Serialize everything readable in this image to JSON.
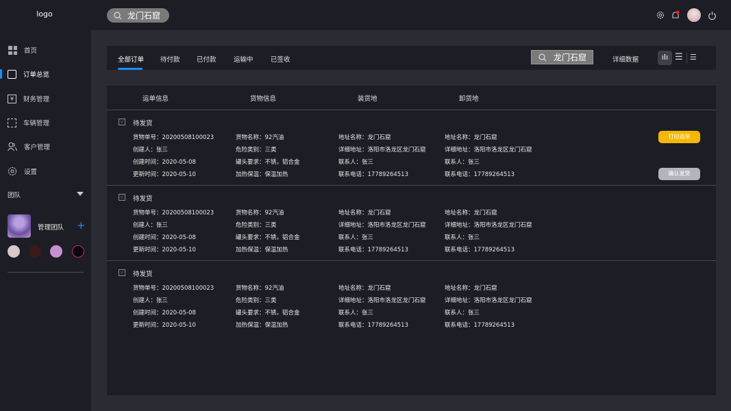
{
  "topbar": {
    "logo": "logo",
    "search_value": "龙门石窟",
    "icons": [
      "gear-icon",
      "bell-icon",
      "avatar",
      "power-icon"
    ],
    "notification_color": "#ff0000"
  },
  "sidebar": {
    "items": [
      {
        "label": "首页",
        "icon": "grid-icon"
      },
      {
        "label": "订单总览",
        "icon": "order-icon",
        "active": true
      },
      {
        "label": "财务管理",
        "icon": "finance-icon"
      },
      {
        "label": "车辆管理",
        "icon": "vehicle-icon"
      },
      {
        "label": "客户管理",
        "icon": "users-icon"
      },
      {
        "label": "设置",
        "icon": "gear-icon"
      }
    ],
    "team_label": "团队",
    "team_name": "管理团队"
  },
  "tabs": [
    {
      "label": "全部订单",
      "active": true
    },
    {
      "label": "待付款"
    },
    {
      "label": "已付款"
    },
    {
      "label": "运输中"
    },
    {
      "label": "已签收"
    }
  ],
  "toolbar": {
    "search_value": "龙门石窟",
    "detail_label": "详细数据"
  },
  "table": {
    "headers": [
      "运单信息",
      "货物信息",
      "装货地",
      "卸货地"
    ],
    "rows": [
      {
        "status": "待发货",
        "order_no": "货物单号：20200508100023",
        "creator": "创建人：张三",
        "created": "创建时间：2020-05-08",
        "updated": "更新时间：2020-05-10",
        "goods": "货物名称：92汽油",
        "hazard": "危险类别：三类",
        "tank": "罐头要求：不锈，铝合金",
        "heat": "加热保温：保温加热",
        "load_name": "地址名称：龙门石窟",
        "load_addr": "详细地址：洛阳市洛龙区龙门石窟",
        "load_contact": "联系人：张三",
        "load_phone": "联系电话：17789264513",
        "unload_name": "地址名称：龙门石窟",
        "unload_addr": "详细地址：洛阳市洛龙区龙门石窟",
        "unload_contact": "联系人：张三",
        "unload_phone": "联系电话：17789264513",
        "print_label": "打印运单",
        "confirm_label": "确认发货"
      },
      {
        "status": "待发货",
        "order_no": "货物单号：20200508100023",
        "creator": "创建人：张三",
        "created": "创建时间：2020-05-08",
        "updated": "更新时间：2020-05-10",
        "goods": "货物名称：92汽油",
        "hazard": "危险类别：三类",
        "tank": "罐头要求：不锈，铝合金",
        "heat": "加热保温：保温加热",
        "load_name": "地址名称：龙门石窟",
        "load_addr": "详细地址：洛阳市洛龙区龙门石窟",
        "load_contact": "联系人：张三",
        "load_phone": "联系电话：17789264513",
        "unload_name": "地址名称：龙门石窟",
        "unload_addr": "详细地址：洛阳市洛龙区龙门石窟",
        "unload_contact": "联系人：张三",
        "unload_phone": "联系电话：17789264513"
      },
      {
        "status": "待发货",
        "order_no": "货物单号：20200508100023",
        "creator": "创建人：张三",
        "created": "创建时间：2020-05-08",
        "updated": "更新时间：2020-05-10",
        "goods": "货物名称：92汽油",
        "hazard": "危险类别：三类",
        "tank": "罐头要求：不锈，铝合金",
        "heat": "加热保温：保温加热",
        "load_name": "地址名称：龙门石窟",
        "load_addr": "详细地址：洛阳市洛龙区龙门石窟",
        "load_contact": "联系人：张三",
        "load_phone": "联系电话：17789264513",
        "unload_name": "地址名称：龙门石窟",
        "unload_addr": "详细地址：洛阳市洛龙区龙门石窟",
        "unload_contact": "联系人：张三",
        "unload_phone": "联系电话：17789264513"
      }
    ]
  },
  "colors": {
    "accent": "#1890ff",
    "print_button": "#f5b800",
    "confirm_button": "#b4b4bc"
  }
}
